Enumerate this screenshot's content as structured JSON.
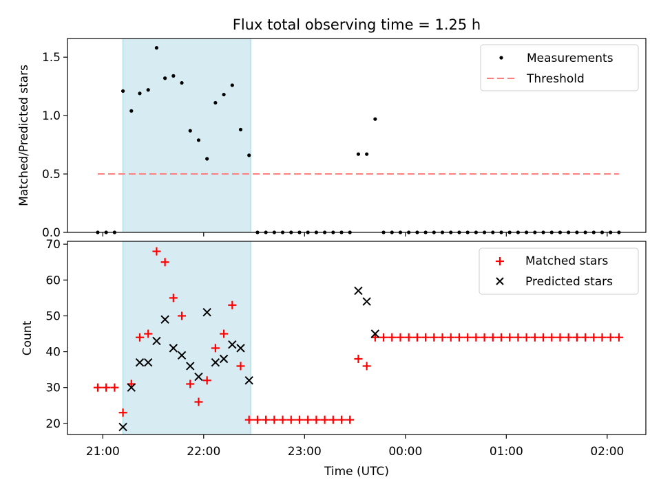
{
  "title": "Flux total observing time = 1.25 h",
  "colors": {
    "shade": "#add8e6",
    "measurement": "#000000",
    "threshold": "#ff7f7f",
    "matched": "#ff0000",
    "predicted": "#000000"
  },
  "chart_data": [
    {
      "type": "scatter",
      "title": "Flux total observing time = 1.25 h",
      "ylabel": "Matched/Predicted stars",
      "xlabel": "",
      "ylim": [
        0,
        1.66
      ],
      "yticks": [
        0.0,
        0.5,
        1.0,
        1.5
      ],
      "ytick_labels": [
        "0.0",
        "0.5",
        "1.0",
        "1.5"
      ],
      "grid": false,
      "legend_position": "top-right",
      "shaded_interval": {
        "start": "21:12",
        "end": "22:28"
      },
      "series": [
        {
          "name": "Measurements",
          "marker": "dot",
          "times": [
            "20:57",
            "21:02",
            "21:07",
            "21:12",
            "21:17",
            "21:22",
            "21:27",
            "21:32",
            "21:37",
            "21:42",
            "21:47",
            "21:52",
            "21:57",
            "22:02",
            "22:07",
            "22:12",
            "22:17",
            "22:22",
            "22:27",
            "22:32",
            "22:37",
            "22:42",
            "22:47",
            "22:52",
            "22:57",
            "23:02",
            "23:07",
            "23:12",
            "23:17",
            "23:22",
            "23:27",
            "23:32",
            "23:37",
            "23:42",
            "23:47",
            "23:52",
            "23:57",
            "00:02",
            "00:07",
            "00:12",
            "00:17",
            "00:22",
            "00:27",
            "00:32",
            "00:37",
            "00:42",
            "00:47",
            "00:52",
            "00:57",
            "01:02",
            "01:07",
            "01:12",
            "01:17",
            "01:22",
            "01:27",
            "01:32",
            "01:37",
            "01:42",
            "01:47",
            "01:52",
            "01:57",
            "02:02",
            "02:07"
          ],
          "values": [
            0,
            0,
            0,
            1.21,
            1.04,
            1.19,
            1.22,
            1.58,
            1.32,
            1.34,
            1.28,
            0.87,
            0.79,
            0.63,
            1.11,
            1.18,
            1.26,
            0.88,
            0.66,
            0,
            0,
            0,
            0,
            0,
            0,
            0,
            0,
            0,
            0,
            0,
            0,
            0.67,
            0.67,
            0.97,
            0,
            0,
            0,
            0,
            0,
            0,
            0,
            0,
            0,
            0,
            0,
            0,
            0,
            0,
            0,
            0,
            0,
            0,
            0,
            0,
            0,
            0,
            0,
            0,
            0,
            0,
            0,
            0,
            0
          ]
        },
        {
          "name": "Threshold",
          "style": "dashed-line",
          "times": [
            "20:57",
            "02:07"
          ],
          "values": [
            0.5,
            0.5
          ]
        }
      ]
    },
    {
      "type": "scatter",
      "title": "",
      "ylabel": "Count",
      "xlabel": "Time (UTC)",
      "ylim": [
        16.9,
        70.8
      ],
      "yticks": [
        20,
        30,
        40,
        50,
        60,
        70
      ],
      "ytick_labels": [
        "20",
        "30",
        "40",
        "50",
        "60",
        "70"
      ],
      "xticks": [
        "21:00",
        "22:00",
        "23:00",
        "00:00",
        "01:00",
        "02:00"
      ],
      "xlim": [
        "20:39",
        "02:23"
      ],
      "grid": false,
      "legend_position": "top-right",
      "shaded_interval": {
        "start": "21:12",
        "end": "22:28"
      },
      "series": [
        {
          "name": "Matched stars",
          "marker": "plus",
          "times": [
            "20:57",
            "21:02",
            "21:07",
            "21:12",
            "21:17",
            "21:22",
            "21:27",
            "21:32",
            "21:37",
            "21:42",
            "21:47",
            "21:52",
            "21:57",
            "22:02",
            "22:07",
            "22:12",
            "22:17",
            "22:22",
            "22:27",
            "22:32",
            "22:37",
            "22:42",
            "22:47",
            "22:52",
            "22:57",
            "23:02",
            "23:07",
            "23:12",
            "23:17",
            "23:22",
            "23:27",
            "23:32",
            "23:37",
            "23:42",
            "23:47",
            "23:52",
            "23:57",
            "00:02",
            "00:07",
            "00:12",
            "00:17",
            "00:22",
            "00:27",
            "00:32",
            "00:37",
            "00:42",
            "00:47",
            "00:52",
            "00:57",
            "01:02",
            "01:07",
            "01:12",
            "01:17",
            "01:22",
            "01:27",
            "01:32",
            "01:37",
            "01:42",
            "01:47",
            "01:52",
            "01:57",
            "02:02",
            "02:07"
          ],
          "values": [
            30,
            30,
            30,
            23,
            31,
            44,
            45,
            68,
            65,
            55,
            50,
            31,
            26,
            32,
            41,
            45,
            53,
            36,
            21,
            21,
            21,
            21,
            21,
            21,
            21,
            21,
            21,
            21,
            21,
            21,
            21,
            38,
            36,
            44,
            44,
            44,
            44,
            44,
            44,
            44,
            44,
            44,
            44,
            44,
            44,
            44,
            44,
            44,
            44,
            44,
            44,
            44,
            44,
            44,
            44,
            44,
            44,
            44,
            44,
            44,
            44,
            44,
            44
          ]
        },
        {
          "name": "Predicted stars",
          "marker": "x",
          "times": [
            "21:12",
            "21:17",
            "21:22",
            "21:27",
            "21:32",
            "21:37",
            "21:42",
            "21:47",
            "21:52",
            "21:57",
            "22:02",
            "22:07",
            "22:12",
            "22:17",
            "22:22",
            "22:27",
            "23:32",
            "23:37",
            "23:42"
          ],
          "values": [
            19,
            30,
            37,
            37,
            43,
            49,
            41,
            39,
            36,
            33,
            51,
            37,
            38,
            42,
            41,
            32,
            57,
            54,
            45
          ]
        }
      ]
    }
  ]
}
